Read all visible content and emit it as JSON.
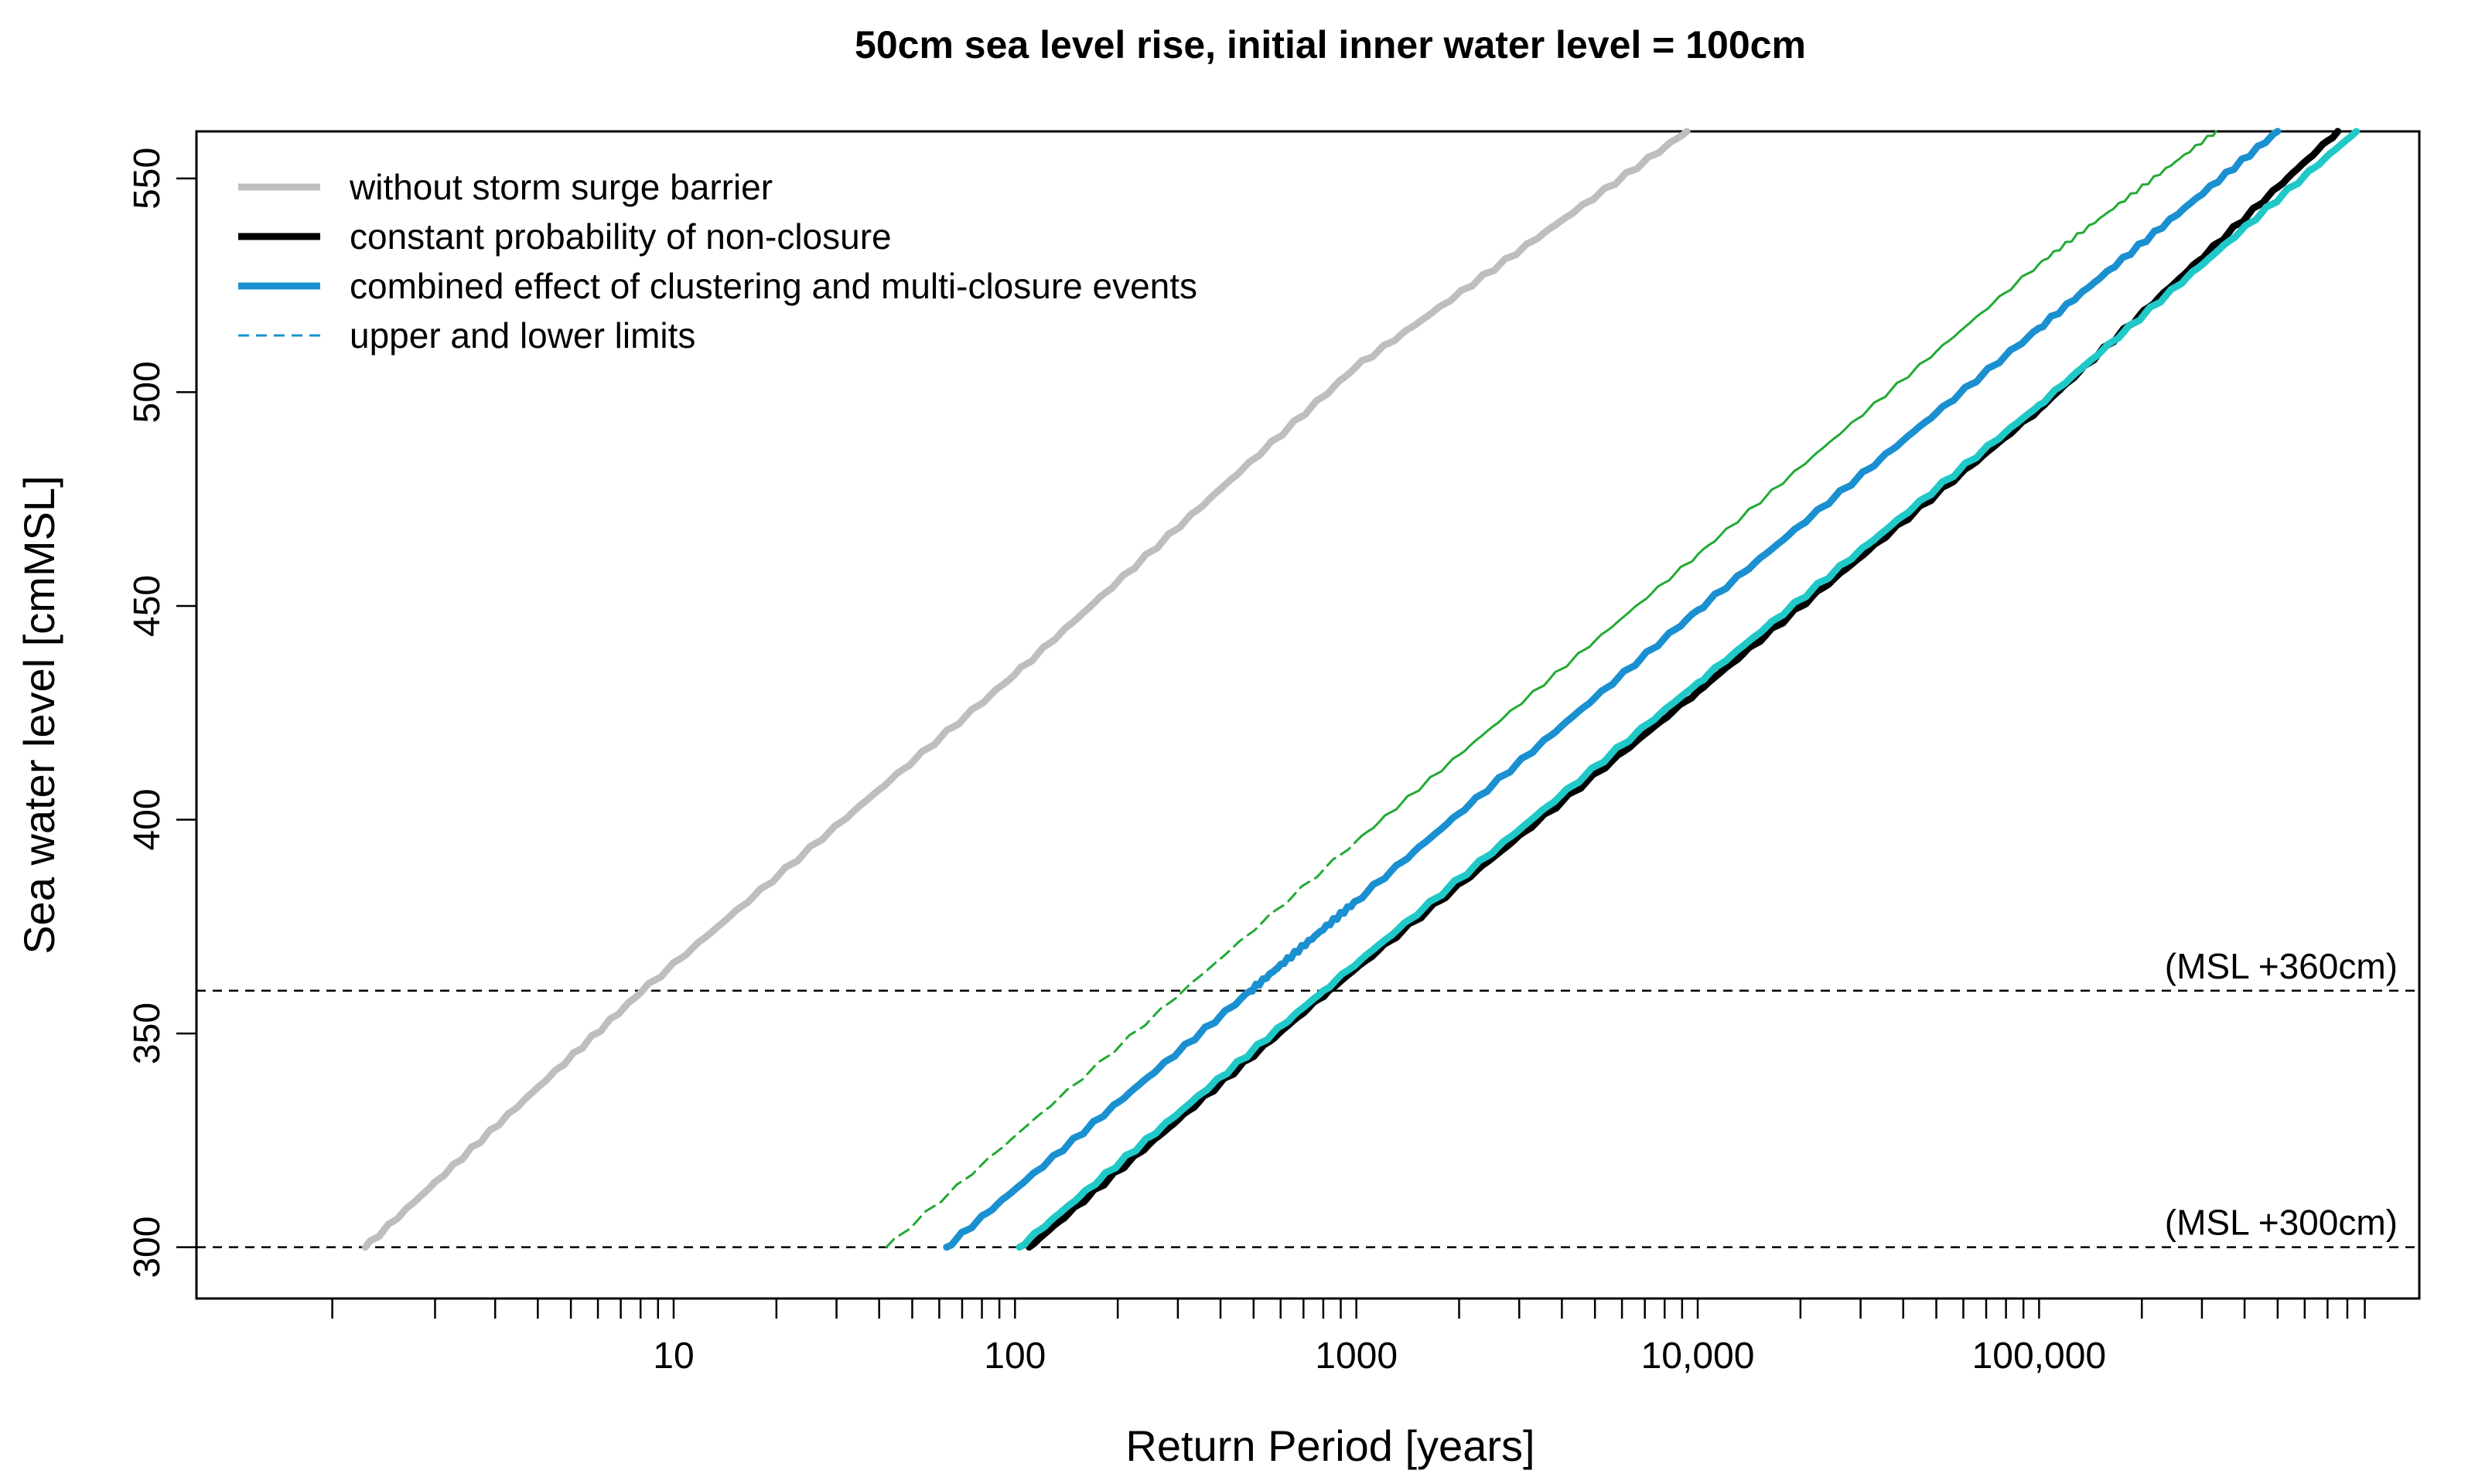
{
  "chart_data": {
    "type": "line",
    "title": "50cm sea level rise, initial inner water level = 100cm",
    "xlabel": "Return Period [years]",
    "ylabel": "Sea water level [cmMSL]",
    "x_scale": "log10",
    "xlim": [
      0.4,
      1300000
    ],
    "ylim": [
      288,
      561
    ],
    "x_ticks": [
      {
        "value": 10,
        "label": "10"
      },
      {
        "value": 100,
        "label": "100"
      },
      {
        "value": 1000,
        "label": "1000"
      },
      {
        "value": 10000,
        "label": "10,000"
      },
      {
        "value": 100000,
        "label": "100,000"
      }
    ],
    "y_ticks": [
      {
        "value": 300,
        "label": "300"
      },
      {
        "value": 350,
        "label": "350"
      },
      {
        "value": 400,
        "label": "400"
      },
      {
        "value": 450,
        "label": "450"
      },
      {
        "value": 500,
        "label": "500"
      },
      {
        "value": 550,
        "label": "550"
      }
    ],
    "reference_lines": [
      {
        "y": 300,
        "label": "(MSL +300cm)"
      },
      {
        "y": 360,
        "label": "(MSL +360cm)"
      }
    ],
    "legend": {
      "position": "top-left",
      "entries": [
        {
          "label": "without storm surge barrier",
          "color": "#bebebe",
          "style": "solid-thick"
        },
        {
          "label": "constant probability of non-closure",
          "color": "#000000",
          "style": "solid-thick"
        },
        {
          "label": "combined effect of clustering and multi-closure events",
          "color": "#1a90d0",
          "style": "solid-thick"
        },
        {
          "label": "upper and lower limits",
          "color": "#1a90d0",
          "style": "dashed-thin"
        }
      ]
    },
    "series": [
      {
        "name": "without storm surge barrier",
        "color": "#bebebe",
        "style": "solid-thick",
        "x": [
          1.25,
          8.1,
          100,
          1000,
          9300
        ],
        "y": [
          300,
          360,
          434,
          506,
          561
        ]
      },
      {
        "name": "upper limit (lower dashed part)",
        "color": "#22aa33",
        "style": "dashed-thin",
        "x": [
          42,
          1000
        ],
        "y": [
          300,
          395
        ]
      },
      {
        "name": "upper limit",
        "color": "#22aa33",
        "style": "solid-thin",
        "x": [
          1000,
          10000,
          100000,
          330000
        ],
        "y": [
          395,
          462,
          530,
          561
        ]
      },
      {
        "name": "constant probability of non-closure",
        "color": "#000000",
        "style": "solid-thick",
        "x": [
          110,
          830,
          10000,
          100000,
          750000
        ],
        "y": [
          300,
          360,
          430,
          496,
          561
        ]
      },
      {
        "name": "lower limit",
        "color": "#20c8c8",
        "style": "solid-thick",
        "x": [
          103,
          800,
          10000,
          100000,
          850000
        ],
        "y": [
          300,
          360,
          432,
          497,
          561
        ]
      },
      {
        "name": "combined effect of clustering and multi-closure events",
        "color": "#1a90d0",
        "style": "solid-thick",
        "x": [
          63,
          490,
          1000,
          10000,
          100000,
          500000
        ],
        "y": [
          300,
          360,
          381,
          449,
          515,
          561
        ]
      }
    ]
  }
}
